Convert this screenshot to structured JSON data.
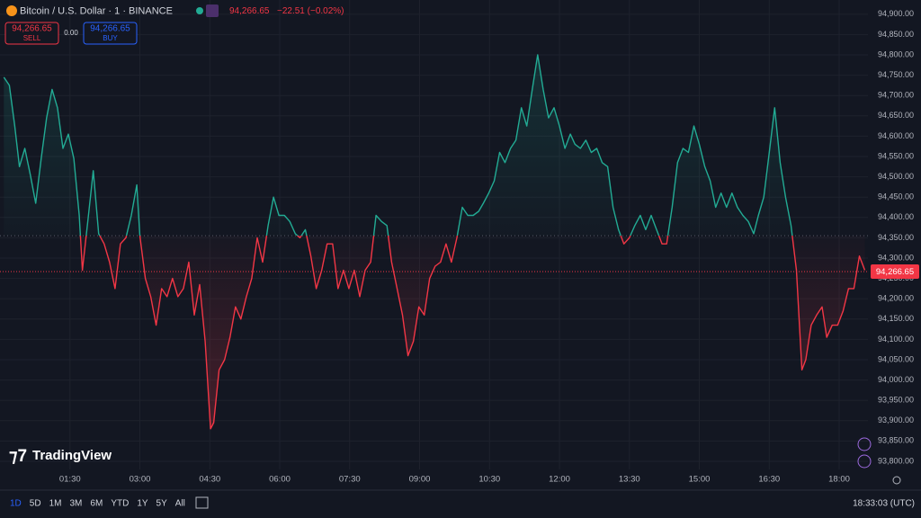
{
  "header": {
    "symbol": "Bitcoin / U.S. Dollar · 1 · BINANCE",
    "price": "94,266.65",
    "change": "−22.51 (−0.02%)"
  },
  "trade": {
    "sell_price": "94,266.65",
    "sell": "SELL",
    "spread": "0.00",
    "buy_price": "94,266.65",
    "buy": "BUY"
  },
  "logo": "TradingView",
  "toolbar": {
    "ranges": [
      "1D",
      "5D",
      "1M",
      "3M",
      "6M",
      "YTD",
      "1Y",
      "5Y",
      "All"
    ],
    "clock": "18:33:03 (UTC)"
  },
  "chart_data": {
    "type": "baseline",
    "baseline": 94355,
    "up_color": "#22ab94",
    "down_color": "#f23645",
    "last_price": {
      "value": 94266.65,
      "label": "94,266.65"
    },
    "x": [
      5,
      12,
      19,
      25,
      32,
      39,
      46,
      53,
      60,
      67,
      74,
      81,
      88,
      95,
      102,
      106,
      113,
      120,
      127,
      134,
      141,
      148,
      155,
      162,
      169,
      176,
      180,
      187,
      194,
      201,
      208,
      215,
      222,
      229,
      236,
      243,
      250,
      257,
      264,
      271,
      275,
      282,
      289,
      296,
      303,
      310,
      317,
      324,
      331,
      338,
      345,
      352,
      359,
      366,
      373,
      380,
      386,
      393,
      400,
      407,
      414,
      421,
      428,
      435,
      442,
      449,
      456,
      463,
      470,
      477,
      484,
      491,
      498,
      504,
      511,
      518,
      525,
      532,
      539,
      546,
      553,
      560,
      567,
      574,
      581,
      588,
      595,
      602,
      609,
      616,
      622,
      629,
      636,
      643,
      650,
      657,
      664,
      671,
      678,
      685,
      692,
      699,
      706,
      713,
      720,
      727,
      734,
      740,
      747,
      754,
      761,
      768,
      775,
      782,
      789,
      796,
      803,
      810,
      817,
      824,
      831,
      838,
      845,
      852,
      858,
      865,
      872,
      879,
      886,
      893,
      900,
      907,
      914,
      921,
      928,
      935,
      942,
      949,
      956,
      963,
      970,
      976,
      983,
      990,
      997,
      1004,
      1011,
      1018,
      1025,
      1032,
      1037,
      1044,
      1051,
      1058,
      1064,
      1071,
      1078,
      1085,
      1092,
      1099,
      1106,
      1113
    ],
    "values": [
      94745,
      94725,
      94625,
      94525,
      94570,
      94505,
      94435,
      94545,
      94645,
      94715,
      94670,
      94570,
      94605,
      94545,
      94405,
      94270,
      94390,
      94515,
      94360,
      94335,
      94290,
      94225,
      94335,
      94350,
      94405,
      94480,
      94355,
      94250,
      94205,
      94135,
      94225,
      94205,
      94250,
      94205,
      94225,
      94290,
      94160,
      94235,
      94095,
      93880,
      93895,
      94025,
      94050,
      94105,
      94180,
      94150,
      94205,
      94250,
      94350,
      94290,
      94380,
      94450,
      94405,
      94405,
      94390,
      94360,
      94350,
      94370,
      94305,
      94225,
      94270,
      94335,
      94335,
      94225,
      94270,
      94225,
      94270,
      94205,
      94270,
      94290,
      94405,
      94390,
      94380,
      94290,
      94225,
      94160,
      94060,
      94095,
      94180,
      94160,
      94250,
      94280,
      94290,
      94335,
      94290,
      94350,
      94425,
      94405,
      94405,
      94415,
      94435,
      94460,
      94490,
      94560,
      94535,
      94570,
      94590,
      94670,
      94625,
      94715,
      94800,
      94715,
      94645,
      94670,
      94625,
      94570,
      94605,
      94580,
      94570,
      94590,
      94560,
      94570,
      94535,
      94525,
      94425,
      94370,
      94335,
      94350,
      94380,
      94405,
      94370,
      94405,
      94370,
      94335,
      94335,
      94425,
      94535,
      94570,
      94560,
      94625,
      94580,
      94525,
      94490,
      94425,
      94460,
      94425,
      94460,
      94425,
      94405,
      94390,
      94360,
      94405,
      94450,
      94560,
      94670,
      94535,
      94450,
      94380,
      94270,
      94025,
      94050,
      94135,
      94160,
      94180,
      94105,
      94135,
      94135,
      94170,
      94225,
      94225,
      94305,
      94270
    ],
    "xlim": [
      0,
      1117
    ],
    "xticks": [
      {
        "value": 90,
        "label": "01:30"
      },
      {
        "value": 180,
        "label": "03:00"
      },
      {
        "value": 270,
        "label": "04:30"
      },
      {
        "value": 360,
        "label": "06:00"
      },
      {
        "value": 450,
        "label": "07:30"
      },
      {
        "value": 540,
        "label": "09:00"
      },
      {
        "value": 630,
        "label": "10:30"
      },
      {
        "value": 720,
        "label": "12:00"
      },
      {
        "value": 810,
        "label": "13:30"
      },
      {
        "value": 900,
        "label": "15:00"
      },
      {
        "value": 990,
        "label": "16:30"
      },
      {
        "value": 1080,
        "label": "18:00"
      }
    ],
    "ylim": [
      93780,
      94935
    ],
    "yticks": [
      {
        "value": 93800,
        "label": "93,800.00"
      },
      {
        "value": 93850,
        "label": "93,850.00"
      },
      {
        "value": 93900,
        "label": "93,900.00"
      },
      {
        "value": 93950,
        "label": "93,950.00"
      },
      {
        "value": 94000,
        "label": "94,000.00"
      },
      {
        "value": 94050,
        "label": "94,050.00"
      },
      {
        "value": 94100,
        "label": "94,100.00"
      },
      {
        "value": 94150,
        "label": "94,150.00"
      },
      {
        "value": 94200,
        "label": "94,200.00"
      },
      {
        "value": 94250,
        "label": "94,250.00"
      },
      {
        "value": 94300,
        "label": "94,300.00"
      },
      {
        "value": 94350,
        "label": "94,350.00"
      },
      {
        "value": 94400,
        "label": "94,400.00"
      },
      {
        "value": 94450,
        "label": "94,450.00"
      },
      {
        "value": 94500,
        "label": "94,500.00"
      },
      {
        "value": 94550,
        "label": "94,550.00"
      },
      {
        "value": 94600,
        "label": "94,600.00"
      },
      {
        "value": 94650,
        "label": "94,650.00"
      },
      {
        "value": 94700,
        "label": "94,700.00"
      },
      {
        "value": 94750,
        "label": "94,750.00"
      },
      {
        "value": 94800,
        "label": "94,800.00"
      },
      {
        "value": 94850,
        "label": "94,850.00"
      },
      {
        "value": 94900,
        "label": "94,900.00"
      }
    ],
    "grid": true
  }
}
